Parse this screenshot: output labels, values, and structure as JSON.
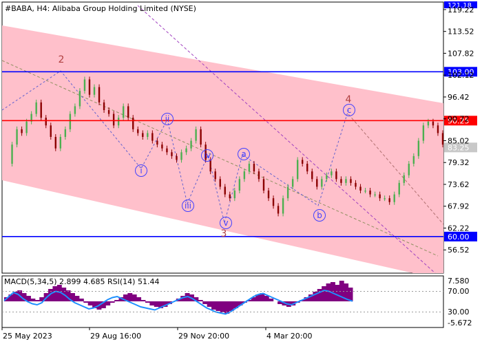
{
  "chart_data": {
    "type": "candlestick",
    "title": "#BABA, H4:  Alibaba Group Holding Limited (NYSE)",
    "y_axis": {
      "ticks": [
        "121.18",
        "119.22",
        "113.52",
        "107.82",
        "102.12",
        "96.42",
        "90.72",
        "85.02",
        "79.32",
        "73.62",
        "67.92",
        "62.22",
        "56.52"
      ],
      "range": [
        51,
        121.18
      ]
    },
    "x_axis": {
      "ticks": [
        "25 May 2023",
        "29 Aug 16:00",
        "29 Nov 20:00",
        "4 Mar 20:00"
      ]
    },
    "price_path": [
      [
        0,
        79
      ],
      [
        6,
        84
      ],
      [
        10,
        88
      ],
      [
        14,
        87
      ],
      [
        18,
        90
      ],
      [
        22,
        92
      ],
      [
        26,
        95
      ],
      [
        30,
        91
      ],
      [
        34,
        89
      ],
      [
        38,
        86
      ],
      [
        42,
        83
      ],
      [
        46,
        86
      ],
      [
        50,
        88
      ],
      [
        54,
        92
      ],
      [
        58,
        94
      ],
      [
        62,
        98
      ],
      [
        66,
        101
      ],
      [
        70,
        97
      ],
      [
        74,
        99
      ],
      [
        78,
        95
      ],
      [
        82,
        93
      ],
      [
        86,
        92
      ],
      [
        90,
        89
      ],
      [
        94,
        91
      ],
      [
        98,
        94
      ],
      [
        102,
        91
      ],
      [
        106,
        88
      ],
      [
        110,
        87
      ],
      [
        114,
        86
      ],
      [
        118,
        87
      ],
      [
        122,
        85
      ],
      [
        126,
        84
      ],
      [
        130,
        83
      ],
      [
        134,
        82
      ],
      [
        138,
        81
      ],
      [
        142,
        80
      ],
      [
        146,
        82
      ],
      [
        150,
        83
      ],
      [
        154,
        85
      ],
      [
        158,
        88
      ],
      [
        162,
        84
      ],
      [
        166,
        80
      ],
      [
        170,
        77
      ],
      [
        174,
        75
      ],
      [
        178,
        73
      ],
      [
        182,
        71
      ],
      [
        186,
        70
      ],
      [
        190,
        72
      ],
      [
        194,
        75
      ],
      [
        198,
        77
      ],
      [
        202,
        79
      ],
      [
        206,
        77
      ],
      [
        210,
        75
      ],
      [
        214,
        72
      ],
      [
        218,
        70
      ],
      [
        222,
        68
      ],
      [
        226,
        66
      ],
      [
        230,
        70
      ],
      [
        234,
        73
      ],
      [
        238,
        75
      ],
      [
        242,
        80
      ],
      [
        246,
        79
      ],
      [
        250,
        77
      ],
      [
        254,
        75
      ],
      [
        258,
        73
      ],
      [
        262,
        75
      ],
      [
        266,
        76
      ],
      [
        270,
        77
      ],
      [
        274,
        75
      ],
      [
        278,
        74
      ],
      [
        282,
        75
      ],
      [
        286,
        74
      ],
      [
        290,
        73
      ],
      [
        294,
        72
      ],
      [
        298,
        72
      ],
      [
        302,
        71
      ],
      [
        306,
        71
      ],
      [
        310,
        70
      ],
      [
        314,
        70
      ],
      [
        318,
        69
      ],
      [
        322,
        71
      ],
      [
        326,
        74
      ],
      [
        330,
        76
      ],
      [
        334,
        79
      ],
      [
        338,
        81
      ],
      [
        342,
        85
      ],
      [
        346,
        89
      ],
      [
        350,
        90
      ],
      [
        354,
        89
      ],
      [
        358,
        87
      ],
      [
        362,
        84
      ]
    ],
    "series": [
      {
        "name": "MACD(5,34,5)",
        "value": "2.899"
      },
      {
        "name": "signal",
        "value": "4.685"
      },
      {
        "name": "RSI(14)",
        "value": "51.44"
      }
    ],
    "levels": [
      {
        "label": "103.00",
        "value": 103.0,
        "color": "#0000ff"
      },
      {
        "label": "90.25",
        "value": 90.25,
        "color": "#ff0000"
      },
      {
        "label": "60.00",
        "value": 60.0,
        "color": "#0000ff"
      }
    ],
    "current_price": {
      "label": "83.25",
      "value": 83.25
    },
    "wave_labels": [
      {
        "text": "2",
        "kind": "plain",
        "color": "#b04040"
      },
      {
        "text": "ii",
        "kind": "circle",
        "color": "#4040ff"
      },
      {
        "text": "i",
        "kind": "circle",
        "color": "#4040ff"
      },
      {
        "text": "iv",
        "kind": "circle",
        "color": "#4040ff"
      },
      {
        "text": "iii",
        "kind": "circle",
        "color": "#4040ff"
      },
      {
        "text": "v",
        "kind": "circle",
        "color": "#4040ff"
      },
      {
        "text": "3",
        "kind": "plain",
        "color": "#b04040"
      },
      {
        "text": "a",
        "kind": "circle",
        "color": "#4040ff"
      },
      {
        "text": "b",
        "kind": "circle",
        "color": "#4040ff"
      },
      {
        "text": "c",
        "kind": "circle",
        "color": "#4040ff"
      },
      {
        "text": "4",
        "kind": "plain",
        "color": "#b04040"
      }
    ],
    "indicator": {
      "label": "MACD(5,34,5) 2.899 4.685 RSI(14) 51.44",
      "ticks": [
        "7.580",
        "70.00",
        "30.00",
        "-5.672"
      ],
      "bars": [
        1.5,
        2.5,
        3.5,
        4,
        3,
        2,
        1,
        0.5,
        1.5,
        3,
        4.5,
        5.5,
        6,
        5,
        4,
        3,
        2,
        1,
        -0.5,
        -1.5,
        -2.5,
        -3,
        -2.5,
        -1.5,
        -0.5,
        0.5,
        1.5,
        2.5,
        3,
        2.5,
        1.5,
        0.5,
        -0.5,
        -1.5,
        -2,
        -2.5,
        -2,
        -1,
        0,
        1,
        2,
        3,
        2.5,
        1.5,
        0.5,
        -1,
        -2,
        -3,
        -3.5,
        -4,
        -4.5,
        -3.5,
        -2.5,
        -1.5,
        -0.5,
        0.5,
        1.5,
        2.5,
        3,
        2,
        1,
        0,
        -1,
        -1.5,
        -2,
        -1.5,
        -0.5,
        0.5,
        1.5,
        2.5,
        3.5,
        4.5,
        5.5,
        6.5,
        7,
        6,
        7.5,
        6.5,
        5
      ],
      "rsi": [
        52,
        60,
        68,
        64,
        56,
        50,
        46,
        44,
        48,
        58,
        66,
        70,
        68,
        62,
        54,
        48,
        44,
        40,
        36,
        38,
        42,
        48,
        54,
        58,
        60,
        56,
        52,
        48,
        44,
        40,
        38,
        36,
        34,
        38,
        42,
        46,
        50,
        54,
        58,
        60,
        56,
        50,
        44,
        38,
        34,
        30,
        28,
        26,
        30,
        36,
        42,
        48,
        54,
        60,
        64,
        66,
        62,
        58,
        54,
        50,
        46,
        44,
        48,
        52,
        56,
        60,
        64,
        68,
        72,
        70,
        66,
        62,
        58,
        54,
        51
      ]
    }
  },
  "colors": {
    "channel_fill": "#ffc0cb",
    "bull_candle": "#4caf50",
    "bear_candle": "#8b0000",
    "macd_bars": "#800080",
    "rsi_line": "#1e90ff",
    "wave_label": "#4040ff",
    "wave_major": "#b04040"
  }
}
